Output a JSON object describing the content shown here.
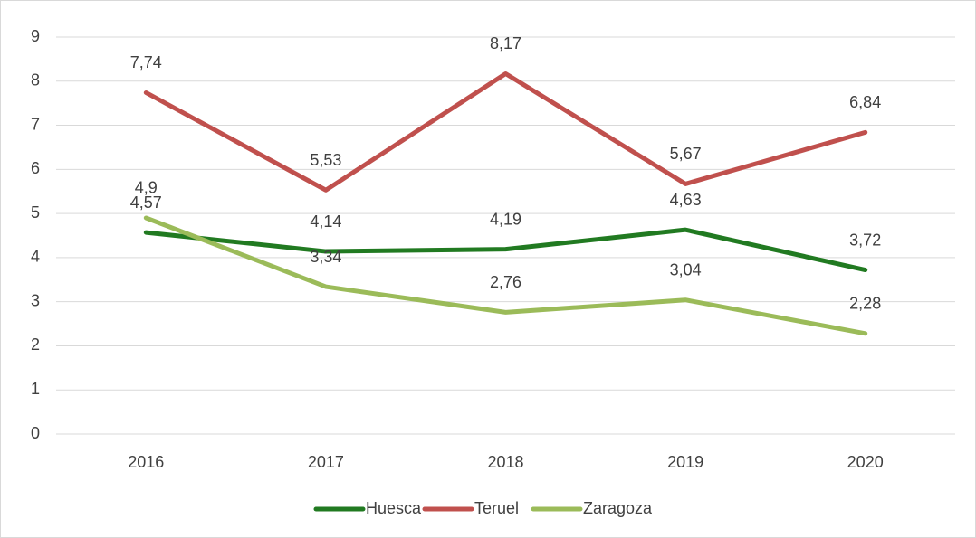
{
  "chart_data": {
    "type": "line",
    "categories": [
      "2016",
      "2017",
      "2018",
      "2019",
      "2020"
    ],
    "series": [
      {
        "name": "Huesca",
        "color": "#217a21",
        "values": [
          4.57,
          4.14,
          4.19,
          4.63,
          3.72
        ],
        "value_labels": [
          "4,57",
          "4,14",
          "4,19",
          "4,63",
          "3,72"
        ]
      },
      {
        "name": "Teruel",
        "color": "#c0504d",
        "values": [
          7.74,
          5.53,
          8.17,
          5.67,
          6.84
        ],
        "value_labels": [
          "7,74",
          "5,53",
          "8,17",
          "5,67",
          "6,84"
        ]
      },
      {
        "name": "Zaragoza",
        "color": "#9bbb59",
        "values": [
          4.9,
          3.34,
          2.76,
          3.04,
          2.28
        ],
        "value_labels": [
          "4,9",
          "3,34",
          "2,76",
          "3,04",
          "2,28"
        ]
      }
    ],
    "ylim": [
      0,
      9
    ],
    "yticks": [
      0,
      1,
      2,
      3,
      4,
      5,
      6,
      7,
      8,
      9
    ],
    "grid": true,
    "legend": "bottom"
  }
}
